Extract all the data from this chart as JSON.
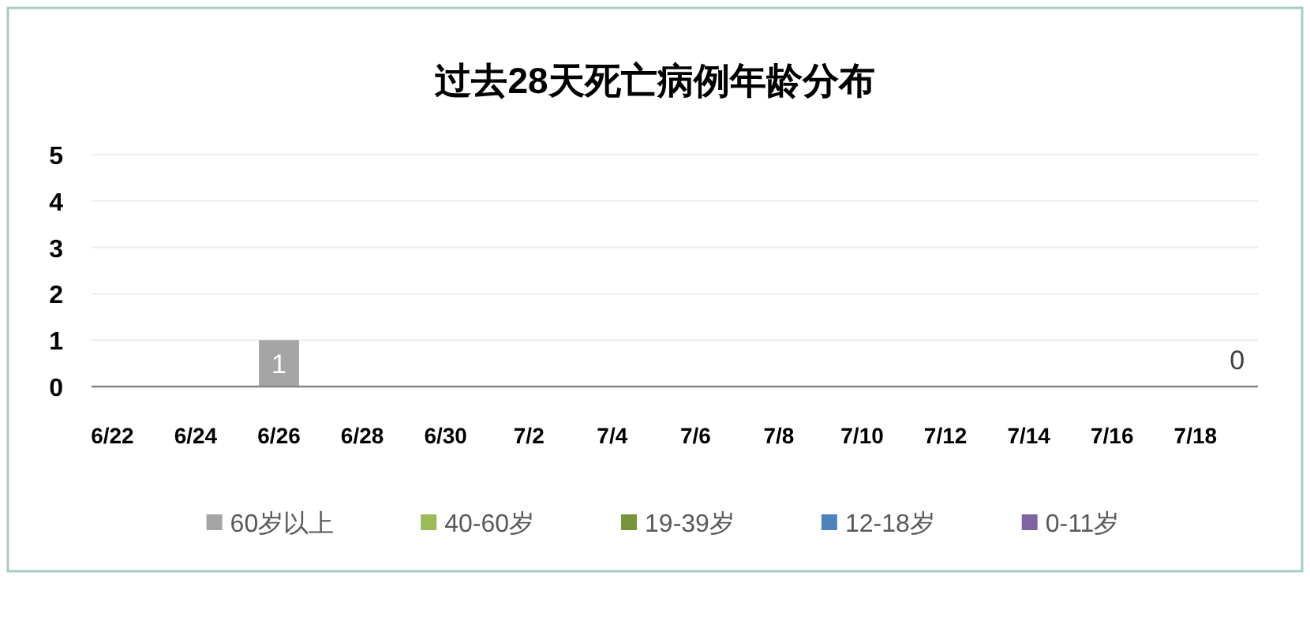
{
  "chart_data": {
    "type": "bar",
    "title": "过去28天死亡病例年龄分布",
    "categories": [
      "6/22",
      null,
      "6/24",
      null,
      "6/26",
      null,
      "6/28",
      null,
      "6/30",
      null,
      "7/2",
      null,
      "7/4",
      null,
      "7/6",
      null,
      "7/8",
      null,
      "7/10",
      null,
      "7/12",
      null,
      "7/14",
      null,
      "7/16",
      null,
      "7/18",
      null
    ],
    "stacked": true,
    "series": [
      {
        "name": "60岁以上",
        "color": "#a5a5a5",
        "values": [
          0,
          0,
          0,
          0,
          1,
          0,
          0,
          0,
          0,
          0,
          0,
          0,
          0,
          0,
          0,
          0,
          0,
          0,
          0,
          0,
          0,
          0,
          0,
          0,
          0,
          0,
          0,
          0
        ],
        "value_labels": [
          null,
          null,
          null,
          null,
          "1",
          null,
          null,
          null,
          null,
          null,
          null,
          null,
          null,
          null,
          null,
          null,
          null,
          null,
          null,
          null,
          null,
          null,
          null,
          null,
          null,
          null,
          null,
          null
        ]
      },
      {
        "name": "40-60岁",
        "color": "#9bbb59",
        "values": [
          0,
          0,
          0,
          0,
          0,
          0,
          0,
          0,
          0,
          0,
          0,
          0,
          0,
          0,
          0,
          0,
          0,
          0,
          0,
          0,
          0,
          0,
          0,
          0,
          0,
          0,
          0,
          0
        ]
      },
      {
        "name": "19-39岁",
        "color": "#77933c",
        "values": [
          0,
          0,
          0,
          0,
          0,
          0,
          0,
          0,
          0,
          0,
          0,
          0,
          0,
          0,
          0,
          0,
          0,
          0,
          0,
          0,
          0,
          0,
          0,
          0,
          0,
          0,
          0,
          0
        ]
      },
      {
        "name": "12-18岁",
        "color": "#4f81bd",
        "values": [
          0,
          0,
          0,
          0,
          0,
          0,
          0,
          0,
          0,
          0,
          0,
          0,
          0,
          0,
          0,
          0,
          0,
          0,
          0,
          0,
          0,
          0,
          0,
          0,
          0,
          0,
          0,
          0
        ]
      },
      {
        "name": "0-11岁",
        "color": "#8064a2",
        "values": [
          0,
          0,
          0,
          0,
          0,
          0,
          0,
          0,
          0,
          0,
          0,
          0,
          0,
          0,
          0,
          0,
          0,
          0,
          0,
          0,
          0,
          0,
          0,
          0,
          0,
          0,
          0,
          0
        ]
      }
    ],
    "totals": [
      null,
      null,
      null,
      null,
      null,
      null,
      null,
      null,
      null,
      null,
      null,
      null,
      null,
      null,
      null,
      null,
      null,
      null,
      null,
      null,
      null,
      null,
      null,
      null,
      null,
      null,
      null,
      "0"
    ],
    "ylim": [
      0,
      5
    ],
    "yticks": [
      0,
      1,
      2,
      3,
      4,
      5
    ],
    "grid": "y",
    "legend": "bottom"
  }
}
